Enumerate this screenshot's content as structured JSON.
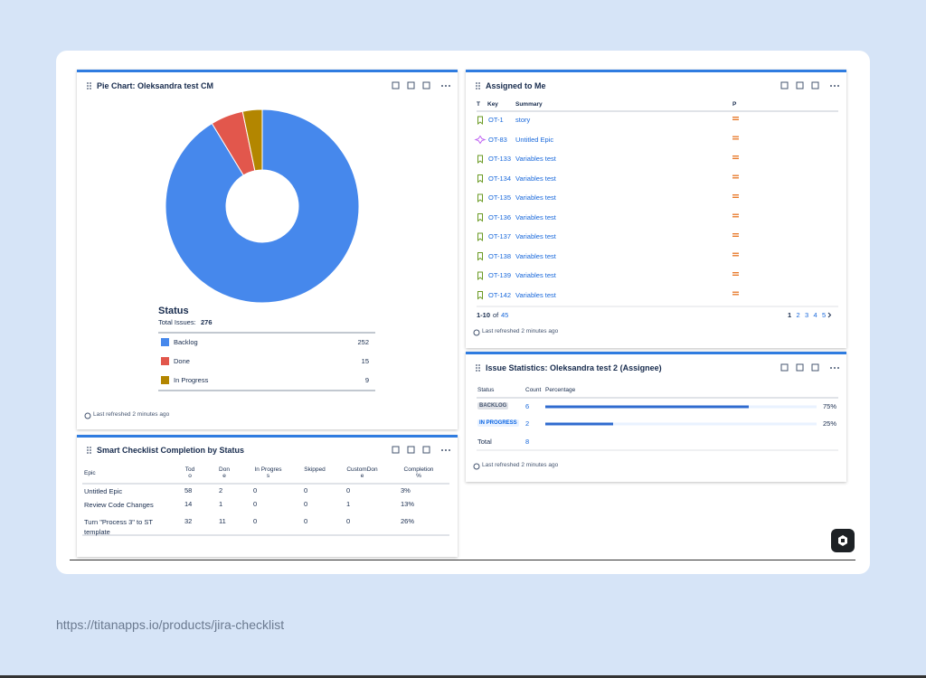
{
  "pie_gadget": {
    "title": "Pie Chart: Oleksandra test CM",
    "legend_title": "Status",
    "total_label": "Total Issues:",
    "total": 276,
    "items": [
      {
        "name": "Backlog",
        "value": 252,
        "color": "#4688ec"
      },
      {
        "name": "Done",
        "value": 15,
        "color": "#e2574c"
      },
      {
        "name": "In Progress",
        "value": 9,
        "color": "#b38600"
      }
    ],
    "refreshed": "Last refreshed 2 minutes ago"
  },
  "assigned": {
    "title": "Assigned to Me",
    "headers": [
      "T",
      "Key",
      "Summary",
      "P"
    ],
    "rows": [
      {
        "icon": "story",
        "key": "OT-1",
        "summary": "story"
      },
      {
        "icon": "epic",
        "key": "OT-83",
        "summary": "Untitled Epic"
      },
      {
        "icon": "story",
        "key": "OT-133",
        "summary": "Variables test"
      },
      {
        "icon": "story",
        "key": "OT-134",
        "summary": "Variables test"
      },
      {
        "icon": "story",
        "key": "OT-135",
        "summary": "Variables test"
      },
      {
        "icon": "story",
        "key": "OT-136",
        "summary": "Variables test"
      },
      {
        "icon": "story",
        "key": "OT-137",
        "summary": "Variables test"
      },
      {
        "icon": "story",
        "key": "OT-138",
        "summary": "Variables test"
      },
      {
        "icon": "story",
        "key": "OT-139",
        "summary": "Variables test"
      },
      {
        "icon": "story",
        "key": "OT-142",
        "summary": "Variables test"
      }
    ],
    "range": "1-10",
    "of": "of",
    "total": 45,
    "pages": [
      "1",
      "2",
      "3",
      "4",
      "5"
    ],
    "refreshed": "Last refreshed 2 minutes ago"
  },
  "stats": {
    "title": "Issue Statistics: Oleksandra test 2 (Assignee)",
    "headers": [
      "Status",
      "Count",
      "Percentage"
    ],
    "rows": [
      {
        "status": "BACKLOG",
        "count": 6,
        "percentage": {
          "value": 75,
          "label": "75%"
        }
      },
      {
        "status": "IN PROGRESS",
        "count": 2,
        "percentage": {
          "value": 25,
          "label": "25%"
        }
      }
    ],
    "total_label": "Total",
    "total": 8,
    "refreshed": "Last refreshed 2 minutes ago"
  },
  "checklist": {
    "title": "Smart Checklist Completion by Status",
    "headers": [
      "Epic",
      "Todo",
      "Done",
      "In Progress",
      "Skipped",
      "CustomDone",
      "Completion %"
    ],
    "rows": [
      [
        "Untitled Epic",
        58,
        2,
        0,
        0,
        0,
        "3%"
      ],
      [
        "Review Code Changes",
        14,
        1,
        0,
        0,
        1,
        "13%"
      ],
      [
        "Turn \"Process 3\" to ST template",
        32,
        11,
        0,
        0,
        0,
        "26%"
      ]
    ]
  },
  "url": "https://titanapps.io/products/jira-checklist"
}
